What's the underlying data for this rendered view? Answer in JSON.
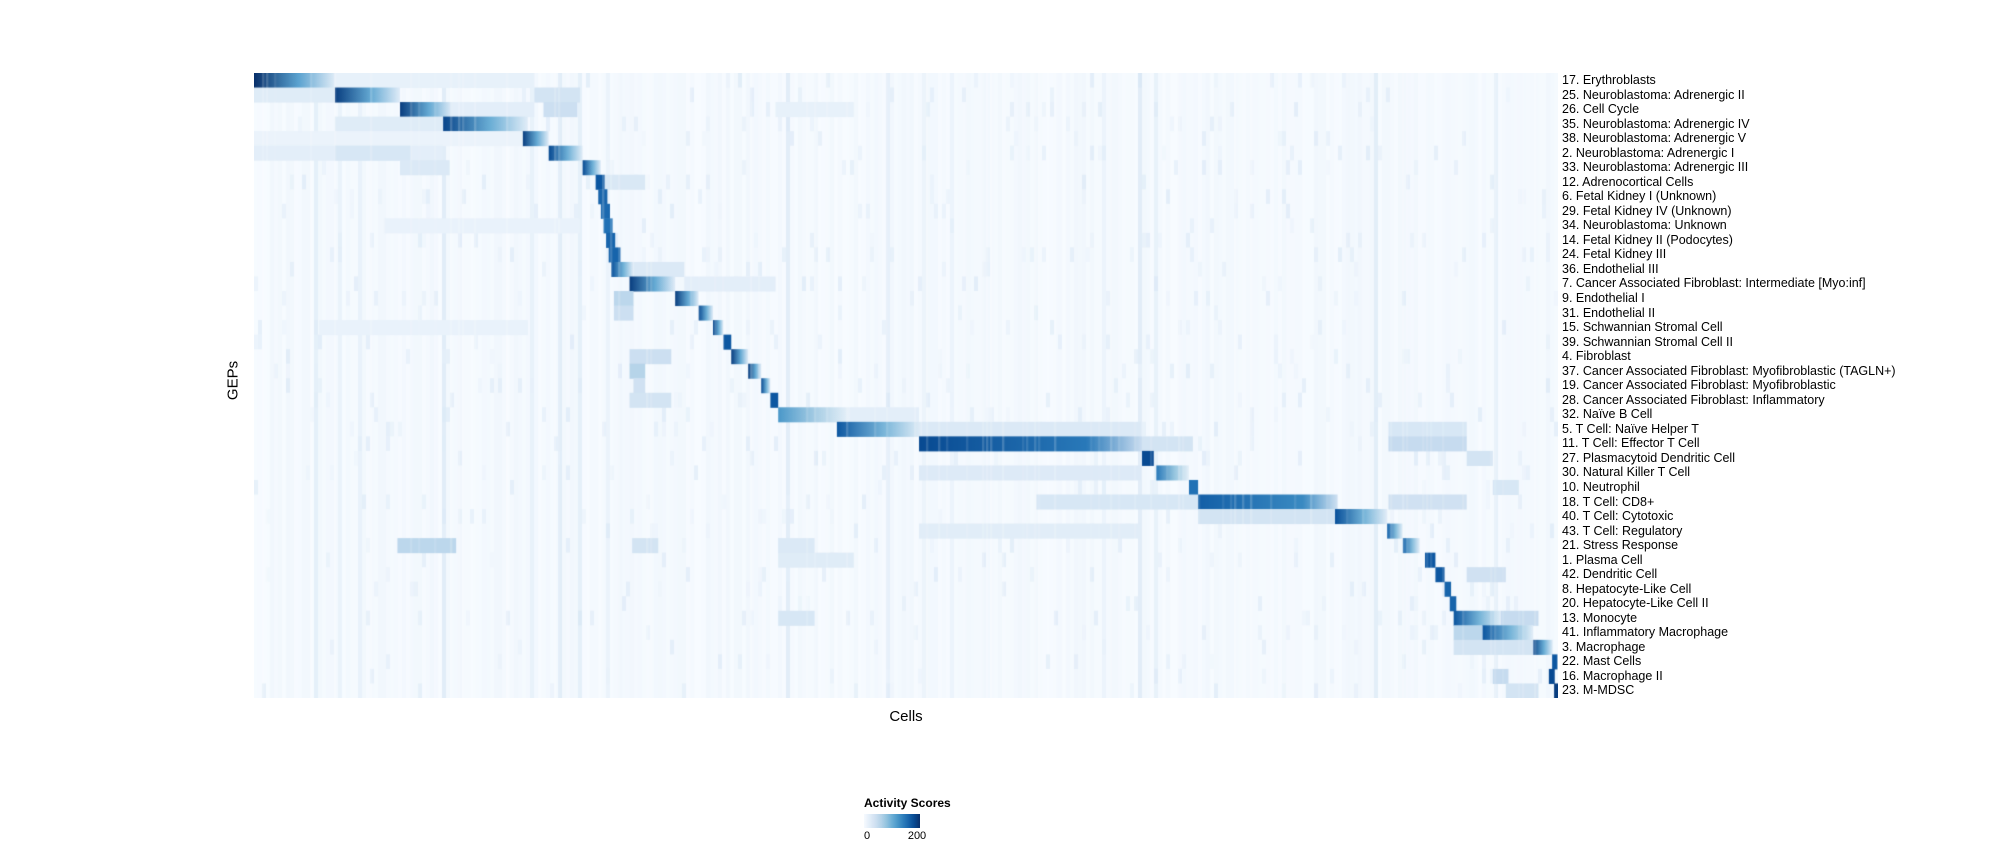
{
  "figure": {
    "background": "#ffffff"
  },
  "chart_data": {
    "type": "heatmap",
    "title": "",
    "xlabel": "Cells",
    "ylabel": "GEPs",
    "legend": {
      "title": "Activity Scores",
      "ticks": [
        "0",
        "200"
      ],
      "range": [
        0,
        200
      ]
    },
    "colormap": {
      "name": "Blues",
      "low": "#f7fbff",
      "high": "#08306b",
      "anchors": [
        [
          247,
          251,
          255
        ],
        [
          222,
          235,
          247
        ],
        [
          198,
          219,
          239
        ],
        [
          158,
          202,
          225
        ],
        [
          107,
          174,
          214
        ],
        [
          66,
          146,
          198
        ],
        [
          33,
          113,
          181
        ],
        [
          8,
          81,
          156
        ],
        [
          8,
          48,
          107
        ]
      ]
    },
    "rows": [
      {
        "label": "17. Erythroblasts",
        "segments": [
          [
            0.0,
            0.062,
            1.0,
            1
          ],
          [
            0.062,
            0.215,
            0.08,
            0
          ]
        ]
      },
      {
        "label": "25. Neuroblastoma: Adrenergic II",
        "segments": [
          [
            0.062,
            0.112,
            0.95,
            1
          ],
          [
            0.0,
            0.062,
            0.12,
            0
          ],
          [
            0.215,
            0.25,
            0.18,
            0
          ]
        ]
      },
      {
        "label": "26. Cell Cycle",
        "segments": [
          [
            0.112,
            0.152,
            0.95,
            1
          ],
          [
            0.152,
            0.215,
            0.1,
            0
          ],
          [
            0.222,
            0.248,
            0.22,
            0
          ],
          [
            0.4,
            0.46,
            0.08,
            0
          ]
        ]
      },
      {
        "label": "35. Neuroblastoma: Adrenergic IV",
        "segments": [
          [
            0.145,
            0.21,
            0.92,
            1
          ],
          [
            0.062,
            0.145,
            0.12,
            0
          ]
        ]
      },
      {
        "label": "38. Neuroblastoma: Adrenergic V",
        "segments": [
          [
            0.206,
            0.226,
            0.95,
            1
          ],
          [
            0.0,
            0.206,
            0.06,
            0
          ]
        ]
      },
      {
        "label": "2. Neuroblastoma: Adrenergic I",
        "segments": [
          [
            0.226,
            0.252,
            0.9,
            1
          ],
          [
            0.0,
            0.145,
            0.1,
            0
          ],
          [
            0.062,
            0.12,
            0.16,
            0
          ]
        ]
      },
      {
        "label": "33. Neuroblastoma: Adrenergic III",
        "segments": [
          [
            0.252,
            0.266,
            0.9,
            1
          ],
          [
            0.112,
            0.15,
            0.14,
            0
          ]
        ]
      },
      {
        "label": "12. Adrenocortical Cells",
        "segments": [
          [
            0.262,
            0.269,
            0.85,
            0
          ],
          [
            0.269,
            0.3,
            0.15,
            0
          ]
        ]
      },
      {
        "label": "6. Fetal Kidney I (Unknown)",
        "segments": [
          [
            0.264,
            0.271,
            0.8,
            0
          ]
        ]
      },
      {
        "label": "29. Fetal Kidney IV (Unknown)",
        "segments": [
          [
            0.266,
            0.273,
            0.78,
            0
          ]
        ]
      },
      {
        "label": "34. Neuroblastoma: Unknown",
        "segments": [
          [
            0.268,
            0.275,
            0.75,
            0
          ],
          [
            0.1,
            0.25,
            0.07,
            0
          ]
        ]
      },
      {
        "label": "14. Fetal Kidney II (Podocytes)",
        "segments": [
          [
            0.27,
            0.277,
            0.8,
            0
          ]
        ]
      },
      {
        "label": "24. Fetal Kidney III",
        "segments": [
          [
            0.272,
            0.281,
            0.8,
            0
          ]
        ]
      },
      {
        "label": "36. Endothelial III",
        "segments": [
          [
            0.274,
            0.291,
            0.88,
            1
          ],
          [
            0.291,
            0.33,
            0.14,
            0
          ]
        ]
      },
      {
        "label": "7. Cancer Associated Fibroblast: Intermediate [Myo:inf]",
        "segments": [
          [
            0.288,
            0.323,
            0.95,
            1
          ],
          [
            0.33,
            0.4,
            0.1,
            0
          ]
        ]
      },
      {
        "label": "9. Endothelial I",
        "segments": [
          [
            0.323,
            0.341,
            0.95,
            1
          ],
          [
            0.276,
            0.291,
            0.28,
            0
          ]
        ]
      },
      {
        "label": "31. Endothelial II",
        "segments": [
          [
            0.341,
            0.352,
            0.9,
            1
          ],
          [
            0.276,
            0.291,
            0.22,
            0
          ]
        ]
      },
      {
        "label": "15. Schwannian Stromal Cell",
        "segments": [
          [
            0.352,
            0.36,
            0.92,
            1
          ],
          [
            0.05,
            0.21,
            0.07,
            0
          ]
        ]
      },
      {
        "label": "39. Schwannian Stromal Cell II",
        "segments": [
          [
            0.36,
            0.366,
            0.85,
            0
          ]
        ]
      },
      {
        "label": "4. Fibroblast",
        "segments": [
          [
            0.366,
            0.379,
            0.95,
            1
          ],
          [
            0.288,
            0.32,
            0.22,
            0
          ]
        ]
      },
      {
        "label": "37. Cancer Associated Fibroblast: Myofibroblastic (TAGLN+)",
        "segments": [
          [
            0.379,
            0.389,
            0.95,
            1
          ],
          [
            0.288,
            0.3,
            0.3,
            0
          ]
        ]
      },
      {
        "label": "19. Cancer Associated Fibroblast: Myofibroblastic",
        "segments": [
          [
            0.389,
            0.396,
            0.9,
            1
          ],
          [
            0.291,
            0.3,
            0.2,
            0
          ]
        ]
      },
      {
        "label": "28. Cancer Associated Fibroblast: Inflammatory",
        "segments": [
          [
            0.396,
            0.402,
            0.85,
            0
          ],
          [
            0.288,
            0.32,
            0.18,
            0
          ]
        ]
      },
      {
        "label": "32. Naïve B Cell",
        "segments": [
          [
            0.402,
            0.457,
            0.6,
            1
          ],
          [
            0.457,
            0.51,
            0.1,
            0
          ]
        ]
      },
      {
        "label": "5. T Cell: Naïve Helper T",
        "segments": [
          [
            0.447,
            0.512,
            0.85,
            1
          ],
          [
            0.512,
            0.68,
            0.14,
            0
          ],
          [
            0.87,
            0.93,
            0.16,
            0
          ]
        ]
      },
      {
        "label": "11. T Cell: Effector T Cell",
        "segments": [
          [
            0.51,
            0.681,
            0.9,
            2
          ],
          [
            0.681,
            0.72,
            0.18,
            0
          ],
          [
            0.87,
            0.93,
            0.25,
            0
          ]
        ]
      },
      {
        "label": "27. Plasmacytoid Dendritic Cell",
        "segments": [
          [
            0.681,
            0.69,
            0.9,
            0
          ],
          [
            0.93,
            0.95,
            0.18,
            0
          ]
        ]
      },
      {
        "label": "30. Natural Killer T Cell",
        "segments": [
          [
            0.692,
            0.717,
            0.72,
            1
          ],
          [
            0.51,
            0.68,
            0.13,
            0
          ]
        ]
      },
      {
        "label": "10. Neutrophil",
        "segments": [
          [
            0.717,
            0.724,
            0.75,
            0
          ],
          [
            0.95,
            0.97,
            0.16,
            0
          ]
        ]
      },
      {
        "label": "18. T Cell: CD8+",
        "segments": [
          [
            0.724,
            0.831,
            0.82,
            2
          ],
          [
            0.6,
            0.724,
            0.16,
            0
          ],
          [
            0.87,
            0.93,
            0.2,
            0
          ]
        ]
      },
      {
        "label": "40. T Cell: Cytotoxic",
        "segments": [
          [
            0.829,
            0.869,
            0.88,
            1
          ],
          [
            0.724,
            0.829,
            0.18,
            0
          ]
        ]
      },
      {
        "label": "43. T Cell: Regulatory",
        "segments": [
          [
            0.869,
            0.881,
            0.8,
            1
          ],
          [
            0.51,
            0.68,
            0.11,
            0
          ]
        ]
      },
      {
        "label": "21. Stress Response",
        "segments": [
          [
            0.881,
            0.894,
            0.8,
            1
          ],
          [
            0.11,
            0.155,
            0.28,
            0
          ],
          [
            0.29,
            0.31,
            0.18,
            0
          ],
          [
            0.402,
            0.43,
            0.14,
            0
          ]
        ]
      },
      {
        "label": "1. Plasma Cell",
        "segments": [
          [
            0.898,
            0.906,
            0.85,
            0
          ],
          [
            0.402,
            0.46,
            0.12,
            0
          ]
        ]
      },
      {
        "label": "42. Dendritic Cell",
        "segments": [
          [
            0.906,
            0.913,
            0.85,
            0
          ],
          [
            0.93,
            0.96,
            0.2,
            0
          ]
        ]
      },
      {
        "label": "8. Hepatocyte-Like Cell",
        "segments": [
          [
            0.913,
            0.918,
            0.8,
            0
          ]
        ]
      },
      {
        "label": "20. Hepatocyte-Like Cell II",
        "segments": [
          [
            0.917,
            0.922,
            0.8,
            0
          ]
        ]
      },
      {
        "label": "13. Monocyte",
        "segments": [
          [
            0.92,
            0.956,
            0.86,
            1
          ],
          [
            0.956,
            0.985,
            0.25,
            0
          ],
          [
            0.402,
            0.43,
            0.16,
            0
          ]
        ]
      },
      {
        "label": "41. Inflammatory Macrophage",
        "segments": [
          [
            0.942,
            0.981,
            0.86,
            1
          ],
          [
            0.92,
            0.942,
            0.28,
            0
          ]
        ]
      },
      {
        "label": "3. Macrophage",
        "segments": [
          [
            0.981,
            0.996,
            0.92,
            1
          ],
          [
            0.92,
            0.981,
            0.18,
            0
          ]
        ]
      },
      {
        "label": "22. Mast Cells",
        "segments": [
          [
            0.9955,
            0.9995,
            0.85,
            0
          ]
        ]
      },
      {
        "label": "16. Macrophage II",
        "segments": [
          [
            0.993,
            0.9975,
            0.9,
            0
          ],
          [
            0.95,
            0.962,
            0.25,
            0
          ]
        ]
      },
      {
        "label": "23. M-MDSC",
        "segments": [
          [
            0.997,
            1.0,
            0.95,
            0
          ],
          [
            0.96,
            0.985,
            0.18,
            0
          ]
        ]
      }
    ]
  }
}
